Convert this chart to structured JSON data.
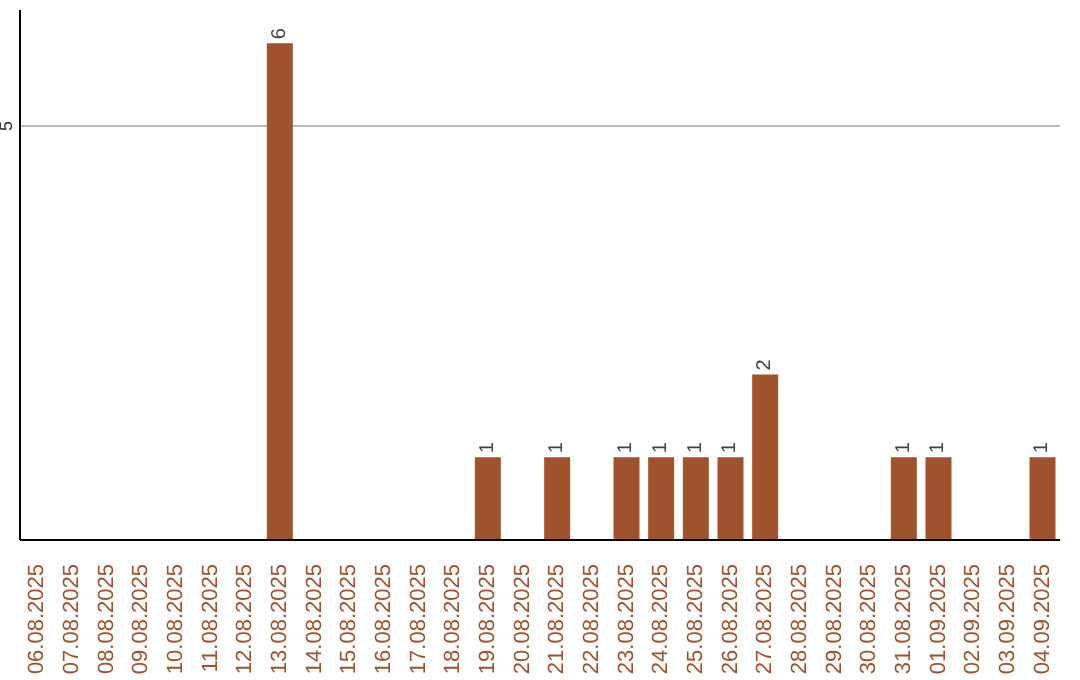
{
  "chart_data": {
    "type": "bar",
    "categories": [
      "06.08.2025",
      "07.08.2025",
      "08.08.2025",
      "09.08.2025",
      "10.08.2025",
      "11.08.2025",
      "12.08.2025",
      "13.08.2025",
      "14.08.2025",
      "15.08.2025",
      "16.08.2025",
      "17.08.2025",
      "18.08.2025",
      "19.08.2025",
      "20.08.2025",
      "21.08.2025",
      "22.08.2025",
      "23.08.2025",
      "24.08.2025",
      "25.08.2025",
      "26.08.2025",
      "27.08.2025",
      "28.08.2025",
      "29.08.2025",
      "30.08.2025",
      "31.08.2025",
      "01.09.2025",
      "02.09.2025",
      "03.09.2025",
      "04.09.2025"
    ],
    "values": [
      0,
      0,
      0,
      0,
      0,
      0,
      0,
      6,
      0,
      0,
      0,
      0,
      0,
      1,
      0,
      1,
      0,
      1,
      1,
      1,
      1,
      2,
      0,
      0,
      0,
      1,
      1,
      0,
      0,
      1
    ],
    "value_labels": [
      null,
      null,
      null,
      null,
      null,
      null,
      null,
      "6",
      null,
      null,
      null,
      null,
      null,
      "1",
      null,
      "1",
      null,
      "1",
      "1",
      "1",
      "1",
      "2",
      null,
      null,
      null,
      "1",
      "1",
      null,
      null,
      "1"
    ],
    "color": "#a0522d",
    "ylim": [
      0,
      6.4
    ],
    "yticks": [
      5
    ],
    "grid": "y"
  }
}
